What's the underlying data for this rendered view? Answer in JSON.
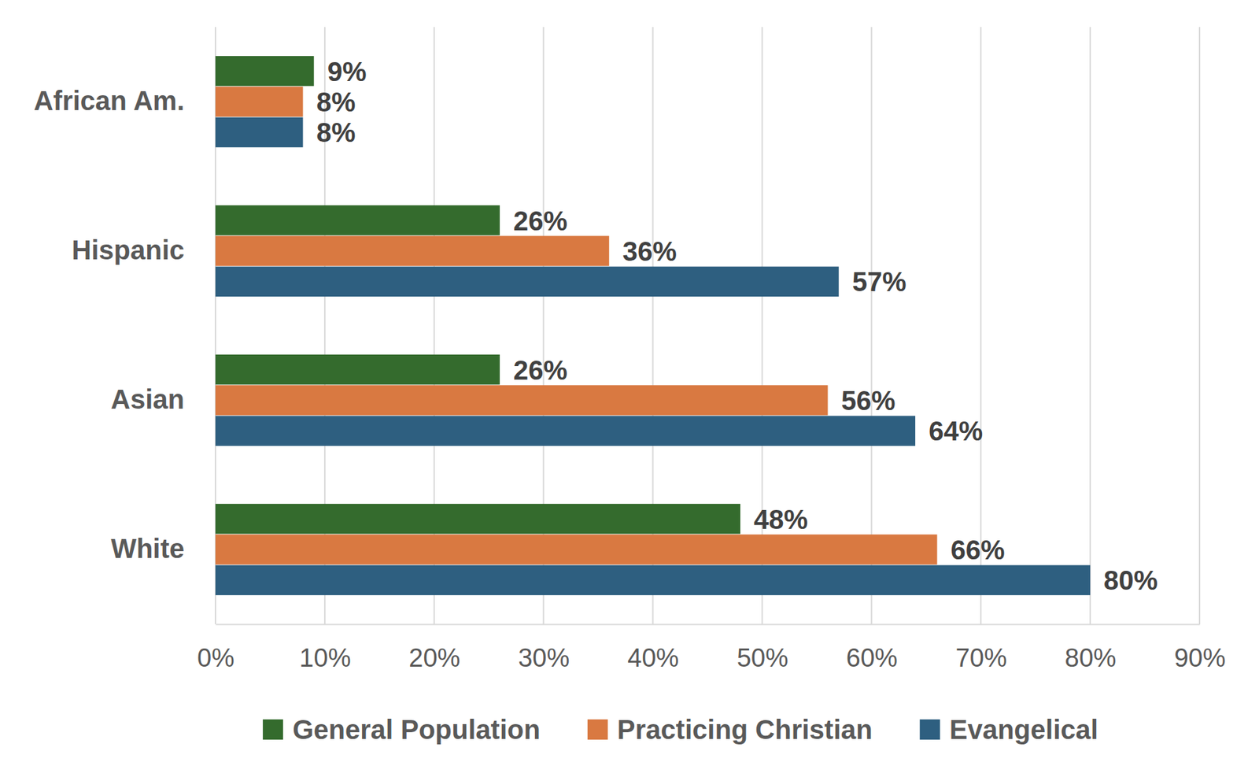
{
  "chart_data": {
    "type": "bar",
    "orientation": "horizontal",
    "categories": [
      "African Am.",
      "Hispanic",
      "Asian",
      "White"
    ],
    "series": [
      {
        "name": "General Population",
        "color": "#346b2d",
        "values": [
          9,
          26,
          26,
          48
        ],
        "value_labels": [
          "9%",
          "26%",
          "26%",
          "48%"
        ]
      },
      {
        "name": "Practicing Christian",
        "color": "#d97941",
        "values": [
          8,
          36,
          56,
          66
        ],
        "value_labels": [
          "8%",
          "36%",
          "56%",
          "66%"
        ]
      },
      {
        "name": "Evangelical",
        "color": "#2e5f80",
        "values": [
          8,
          57,
          64,
          80
        ],
        "value_labels": [
          "8%",
          "57%",
          "64%",
          "80%"
        ]
      }
    ],
    "xlim": [
      0,
      90
    ],
    "xticks": [
      {
        "value": 0,
        "label": "0%"
      },
      {
        "value": 10,
        "label": "10%"
      },
      {
        "value": 20,
        "label": "20%"
      },
      {
        "value": 30,
        "label": "30%"
      },
      {
        "value": 40,
        "label": "40%"
      },
      {
        "value": 50,
        "label": "50%"
      },
      {
        "value": 60,
        "label": "60%"
      },
      {
        "value": 70,
        "label": "70%"
      },
      {
        "value": 80,
        "label": "80%"
      },
      {
        "value": 90,
        "label": "90%"
      }
    ],
    "grid": true,
    "data_labels": true,
    "legend": "bottom"
  }
}
